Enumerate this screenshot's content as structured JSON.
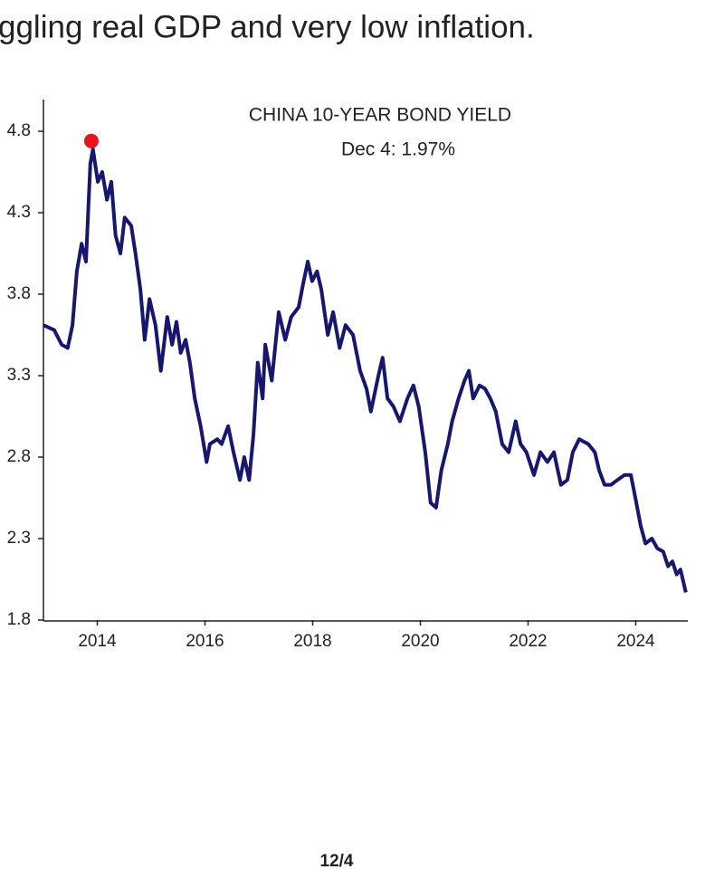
{
  "header": {
    "text": "ggling real GDP and very low inflation."
  },
  "chart_data": {
    "type": "line",
    "title": "CHINA 10-YEAR BOND YIELD",
    "subtitle": "Dec 4: 1.97%",
    "x": [
      2013.0,
      2013.2,
      2013.34,
      2013.45,
      2013.54,
      2013.62,
      2013.71,
      2013.79,
      2013.87,
      2013.92,
      2014.01,
      2014.09,
      2014.18,
      2014.26,
      2014.34,
      2014.43,
      2014.51,
      2014.63,
      2014.71,
      2014.8,
      2014.88,
      2014.97,
      2015.08,
      2015.18,
      2015.3,
      2015.39,
      2015.47,
      2015.55,
      2015.64,
      2015.72,
      2015.81,
      2015.92,
      2016.03,
      2016.09,
      2016.23,
      2016.31,
      2016.43,
      2016.53,
      2016.65,
      2016.73,
      2016.82,
      2016.9,
      2016.98,
      2017.07,
      2017.12,
      2017.24,
      2017.37,
      2017.49,
      2017.6,
      2017.74,
      2017.82,
      2017.91,
      2017.99,
      2018.08,
      2018.16,
      2018.28,
      2018.38,
      2018.5,
      2018.61,
      2018.75,
      2018.88,
      2019.0,
      2019.08,
      2019.22,
      2019.3,
      2019.39,
      2019.5,
      2019.62,
      2019.76,
      2019.87,
      2019.97,
      2020.09,
      2020.19,
      2020.29,
      2020.39,
      2020.51,
      2020.59,
      2020.71,
      2020.82,
      2020.9,
      2020.98,
      2021.1,
      2021.2,
      2021.3,
      2021.4,
      2021.52,
      2021.64,
      2021.77,
      2021.86,
      2021.97,
      2022.11,
      2022.23,
      2022.36,
      2022.48,
      2022.61,
      2022.73,
      2022.83,
      2022.95,
      2023.12,
      2023.24,
      2023.32,
      2023.42,
      2023.54,
      2023.66,
      2023.79,
      2023.91,
      2024.01,
      2024.09,
      2024.18,
      2024.3,
      2024.4,
      2024.51,
      2024.6,
      2024.68,
      2024.76,
      2024.83,
      2024.93
    ],
    "series": [
      {
        "name": "China 10-year bond yield",
        "color": "#17176e",
        "values": [
          3.61,
          3.58,
          3.49,
          3.47,
          3.61,
          3.94,
          4.11,
          4.0,
          4.6,
          4.69,
          4.49,
          4.55,
          4.38,
          4.49,
          4.16,
          4.05,
          4.27,
          4.22,
          4.05,
          3.83,
          3.52,
          3.77,
          3.61,
          3.33,
          3.66,
          3.49,
          3.63,
          3.44,
          3.52,
          3.38,
          3.16,
          2.99,
          2.77,
          2.88,
          2.91,
          2.88,
          2.99,
          2.83,
          2.66,
          2.8,
          2.66,
          2.94,
          3.38,
          3.16,
          3.49,
          3.27,
          3.69,
          3.52,
          3.66,
          3.72,
          3.86,
          4.0,
          3.88,
          3.94,
          3.83,
          3.55,
          3.69,
          3.47,
          3.61,
          3.55,
          3.33,
          3.22,
          3.08,
          3.3,
          3.41,
          3.16,
          3.11,
          3.02,
          3.16,
          3.24,
          3.11,
          2.83,
          2.52,
          2.49,
          2.72,
          2.88,
          3.02,
          3.16,
          3.27,
          3.33,
          3.16,
          3.24,
          3.22,
          3.16,
          3.08,
          2.88,
          2.83,
          3.02,
          2.88,
          2.83,
          2.69,
          2.83,
          2.77,
          2.83,
          2.63,
          2.66,
          2.83,
          2.91,
          2.88,
          2.83,
          2.72,
          2.63,
          2.63,
          2.66,
          2.69,
          2.69,
          2.52,
          2.38,
          2.27,
          2.3,
          2.24,
          2.22,
          2.13,
          2.16,
          2.08,
          2.11,
          1.97
        ]
      }
    ],
    "marker": {
      "x": 2013.89,
      "value": 4.74,
      "color": "#e8141c"
    },
    "xlim": [
      2013,
      2025
    ],
    "xticks": [
      2014,
      2016,
      2018,
      2020,
      2022,
      2024
    ],
    "ylim": [
      1.8,
      5.0
    ],
    "yticks": [
      1.8,
      2.3,
      2.8,
      3.3,
      3.8,
      4.3,
      4.8
    ],
    "grid": false
  },
  "footer": {
    "text": "12/4"
  }
}
